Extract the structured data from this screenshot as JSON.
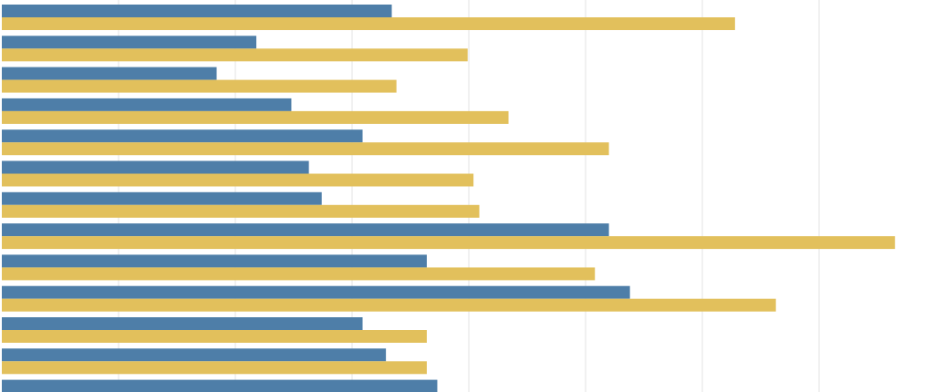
{
  "chart_data": {
    "type": "bar",
    "orientation": "horizontal",
    "categories": [
      null,
      null,
      null,
      null,
      null,
      null,
      null,
      null,
      null,
      null,
      null,
      null,
      null
    ],
    "series": [
      {
        "color": "#4e7ea8",
        "values": [
          3.34,
          2.18,
          1.84,
          2.48,
          3.09,
          2.63,
          2.74,
          5.2,
          3.64,
          5.38,
          3.09,
          3.29,
          3.73
        ]
      },
      {
        "color": "#e2c05c",
        "values": [
          6.28,
          3.99,
          3.38,
          4.34,
          5.2,
          4.04,
          4.09,
          7.65,
          5.08,
          6.63,
          3.64,
          3.64,
          null
        ]
      }
    ],
    "xlim": [
      0,
      8
    ],
    "xticks": [
      1,
      2,
      3,
      4,
      5,
      6,
      7
    ],
    "grid": true
  }
}
